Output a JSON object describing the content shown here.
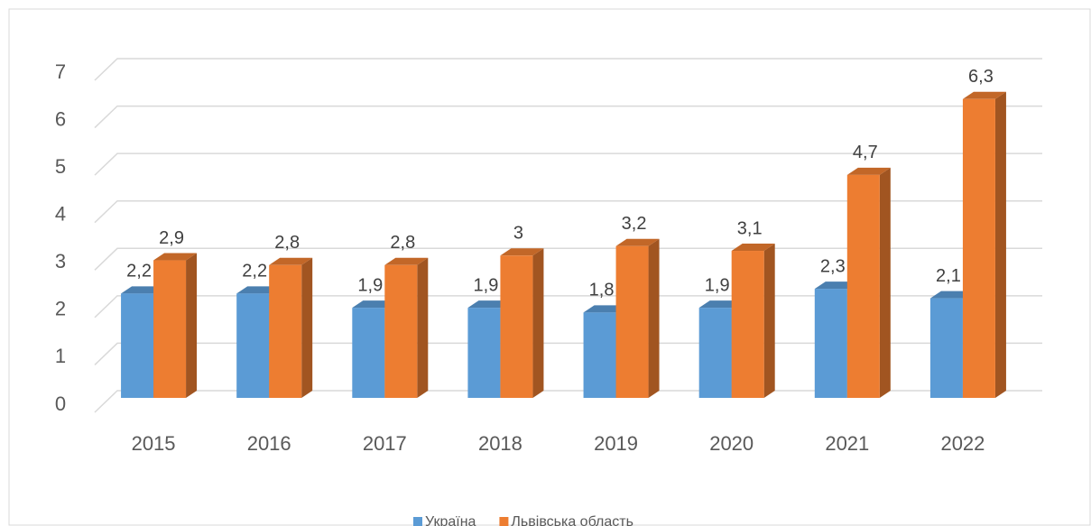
{
  "chart_data": {
    "type": "bar3d",
    "categories": [
      "2015",
      "2016",
      "2017",
      "2018",
      "2019",
      "2020",
      "2021",
      "2022"
    ],
    "series": [
      {
        "name": "Україна",
        "color": "#5b9bd5",
        "values": [
          2.2,
          2.2,
          1.9,
          1.9,
          1.8,
          1.9,
          2.3,
          2.1
        ],
        "value_labels": [
          "2,2",
          "2,2",
          "1,9",
          "1,9",
          "1,8",
          "1,9",
          "2,3",
          "2,1"
        ]
      },
      {
        "name": "Львівська область",
        "color": "#ed7d31",
        "values": [
          2.9,
          2.8,
          2.8,
          3,
          3.2,
          3.1,
          4.7,
          6.3
        ],
        "value_labels": [
          "2,9",
          "2,8",
          "2,8",
          "3",
          "3,2",
          "3,1",
          "4,7",
          "6,3"
        ]
      }
    ],
    "ylim": [
      0,
      7
    ],
    "yticks": [
      0,
      1,
      2,
      3,
      4,
      5,
      6,
      7
    ],
    "grid": true,
    "legend": "bottom"
  }
}
